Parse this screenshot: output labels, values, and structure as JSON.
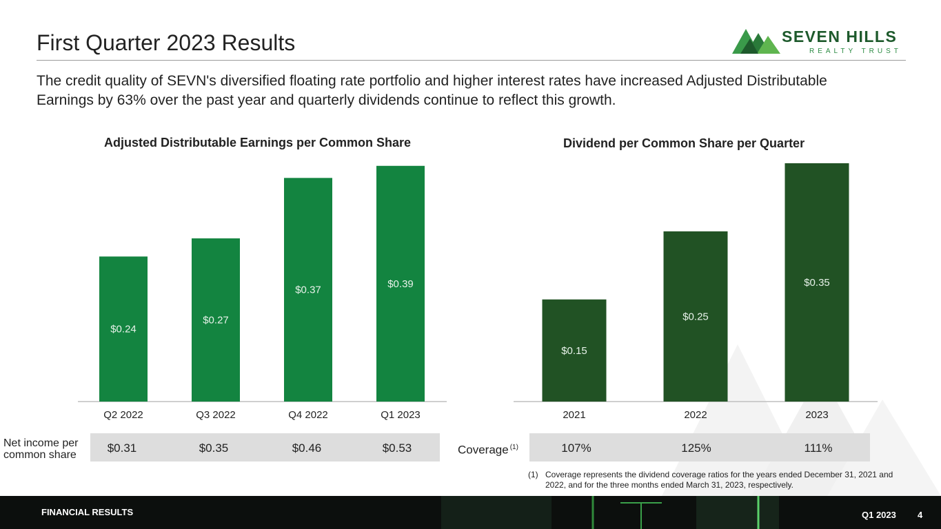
{
  "page": {
    "title": "First Quarter 2023 Results",
    "subtitle": "The credit quality of SEVN's diversified floating rate portfolio and higher interest rates have increased Adjusted Distributable Earnings by 63% over the past year and quarterly dividends continue to reflect this growth."
  },
  "logo": {
    "brand": "SEVEN HILLS",
    "sub": "REALTY TRUST"
  },
  "colors": {
    "left_bar": "#138440",
    "right_bar": "#215224",
    "band": "#dddddd",
    "axis": "#bfbfbf",
    "footer_bg": "#0c0f0d"
  },
  "chart_data": [
    {
      "type": "bar",
      "title": "Adjusted Distributable Earnings per Common Share",
      "categories": [
        "Q2 2022",
        "Q3 2022",
        "Q4 2022",
        "Q1 2023"
      ],
      "values": [
        0.24,
        0.27,
        0.37,
        0.39
      ],
      "data_labels": [
        "$0.24",
        "$0.27",
        "$0.37",
        "$0.39"
      ],
      "ylim": [
        0,
        0.4
      ],
      "xlabel": "",
      "ylabel": "",
      "grid": false
    },
    {
      "type": "bar",
      "title": "Dividend per Common Share per Quarter",
      "categories": [
        "2021",
        "2022",
        "2023"
      ],
      "values": [
        0.15,
        0.25,
        0.35
      ],
      "data_labels": [
        "$0.15",
        "$0.25",
        "$0.35"
      ],
      "ylim": [
        0,
        0.35
      ],
      "xlabel": "",
      "ylabel": "",
      "grid": false
    }
  ],
  "left_row": {
    "label_line1": "Net income per",
    "label_line2": "common share",
    "values": [
      "$0.31",
      "$0.35",
      "$0.46",
      "$0.53"
    ]
  },
  "right_row": {
    "label": "Coverage",
    "label_sup": "(1)",
    "values": [
      "107%",
      "125%",
      "111%"
    ]
  },
  "footnote": {
    "num": "(1)",
    "text": "Coverage represents the dividend coverage ratios for the years ended December 31, 2021 and 2022, and for the three months ended March 31, 2023, respectively."
  },
  "footer": {
    "label": "FINANCIAL RESULTS",
    "quarter": "Q1 2023",
    "page": "4"
  }
}
